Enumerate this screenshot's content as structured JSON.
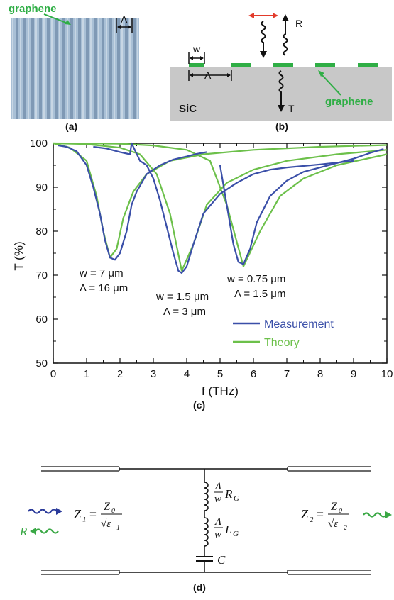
{
  "panel_a": {
    "label": "graphene",
    "period_symbol": "Λ",
    "caption": "(a)"
  },
  "panel_b": {
    "w_label": "w",
    "period_symbol": "Λ",
    "R_label": "R",
    "T_label": "T",
    "substrate_label": "SiC",
    "graphene_label": "graphene",
    "caption": "(b)"
  },
  "panel_c": {
    "caption": "(c)"
  },
  "chart_data": {
    "type": "line",
    "xlabel": "f (THz)",
    "ylabel": "T (%)",
    "xlim": [
      0,
      10
    ],
    "ylim": [
      50,
      100
    ],
    "xticks": [
      "0",
      "1",
      "2",
      "3",
      "4",
      "5",
      "6",
      "7",
      "8",
      "9",
      "10"
    ],
    "yticks": [
      "50",
      "60",
      "70",
      "80",
      "90",
      "100"
    ],
    "legend": {
      "placement": "bottom-right",
      "entries": [
        "Measurement",
        "Theory"
      ]
    },
    "colors": {
      "Measurement": "#3a4fa8",
      "Theory": "#6cc04a"
    },
    "annotations": [
      {
        "line1": "w = 7 μm",
        "line2": "Λ = 16 μm"
      },
      {
        "line1": "w = 1.5 μm",
        "line2": "Λ = 3 μm"
      },
      {
        "line1": "w = 0.75 μm",
        "line2": "Λ = 1.5 μm"
      }
    ],
    "series": [
      {
        "name": "Measurement",
        "x": [
          0.15,
          0.4,
          0.7,
          1.0,
          1.2,
          1.4,
          1.55,
          1.7,
          1.85,
          2.0,
          2.2,
          2.35,
          2.5,
          2.8,
          3.2,
          3.6,
          4.0,
          4.3,
          4.6
        ],
        "y": [
          99.5,
          99.2,
          98.2,
          95,
          90,
          84,
          78,
          74,
          73.5,
          75,
          80,
          86,
          89,
          93,
          95,
          96.3,
          97,
          97.6,
          98
        ]
      },
      {
        "name": "Measurement",
        "x": [
          1.2,
          1.6,
          2.0,
          2.3,
          2.35,
          2.6,
          2.8,
          3.0,
          3.2,
          3.4,
          3.6,
          3.75,
          3.85,
          4.0,
          4.2,
          4.5,
          5.0,
          5.5,
          6.0,
          6.5,
          7.0,
          8.0,
          9.0
        ],
        "y": [
          99.2,
          98.8,
          98,
          97.5,
          100,
          96,
          95,
          92,
          87,
          81,
          75,
          71,
          70.5,
          72,
          77,
          84,
          88.5,
          91,
          93,
          94,
          94.5,
          95.2,
          96
        ]
      },
      {
        "name": "Measurement",
        "x": [
          5.0,
          5.2,
          5.4,
          5.55,
          5.7,
          5.9,
          6.1,
          6.5,
          7.0,
          7.5,
          8.0,
          8.5,
          9.0,
          9.5,
          9.9
        ],
        "y": [
          95,
          86,
          77,
          73,
          72.5,
          76,
          82,
          88,
          91.5,
          93.5,
          94.5,
          95.5,
          96.5,
          97.8,
          98.7
        ]
      },
      {
        "name": "Theory",
        "x": [
          0,
          0.5,
          1.0,
          1.3,
          1.5,
          1.7,
          1.9,
          2.1,
          2.4,
          2.8,
          3.5,
          4.5,
          6,
          8,
          10
        ],
        "y": [
          100,
          99,
          96,
          88,
          80,
          74,
          76,
          83,
          89,
          93,
          96,
          97.5,
          98.5,
          99.2,
          99.6
        ]
      },
      {
        "name": "Theory",
        "x": [
          0,
          1,
          2,
          2.6,
          3.1,
          3.5,
          3.85,
          4.2,
          4.6,
          5.2,
          6,
          7,
          8.5,
          10
        ],
        "y": [
          100,
          99.8,
          99,
          97.5,
          93,
          84,
          71,
          77,
          86,
          91,
          94,
          96,
          97.5,
          98.5
        ]
      },
      {
        "name": "Theory",
        "x": [
          0,
          2,
          3,
          4,
          4.7,
          5.2,
          5.7,
          6.2,
          6.8,
          7.5,
          8.5,
          10
        ],
        "y": [
          100,
          99.9,
          99.5,
          98.5,
          96,
          86,
          72,
          80,
          88,
          92,
          95,
          97.5
        ]
      }
    ]
  },
  "panel_d": {
    "caption": "(d)",
    "z1_name": "Z",
    "z1_sub": "1",
    "z1_num": "Z",
    "z1_num_sub": "0",
    "z1_den": "√ε",
    "z1_den_sub": "1",
    "z2_name": "Z",
    "z2_sub": "2",
    "z2_num": "Z",
    "z2_num_sub": "0",
    "z2_den": "√ε",
    "z2_den_sub": "2",
    "r_frac_num": "Λ",
    "r_frac_den": "w",
    "r_symbol": "R",
    "r_sub": "G",
    "l_frac_num": "Λ",
    "l_frac_den": "w",
    "l_symbol": "L",
    "l_sub": "G",
    "c_symbol": "C",
    "R_wave_label": "R",
    "colors": {
      "incident": "#2a3a9a",
      "reflected": "#3aa845",
      "transmitted": "#3aa845"
    }
  }
}
